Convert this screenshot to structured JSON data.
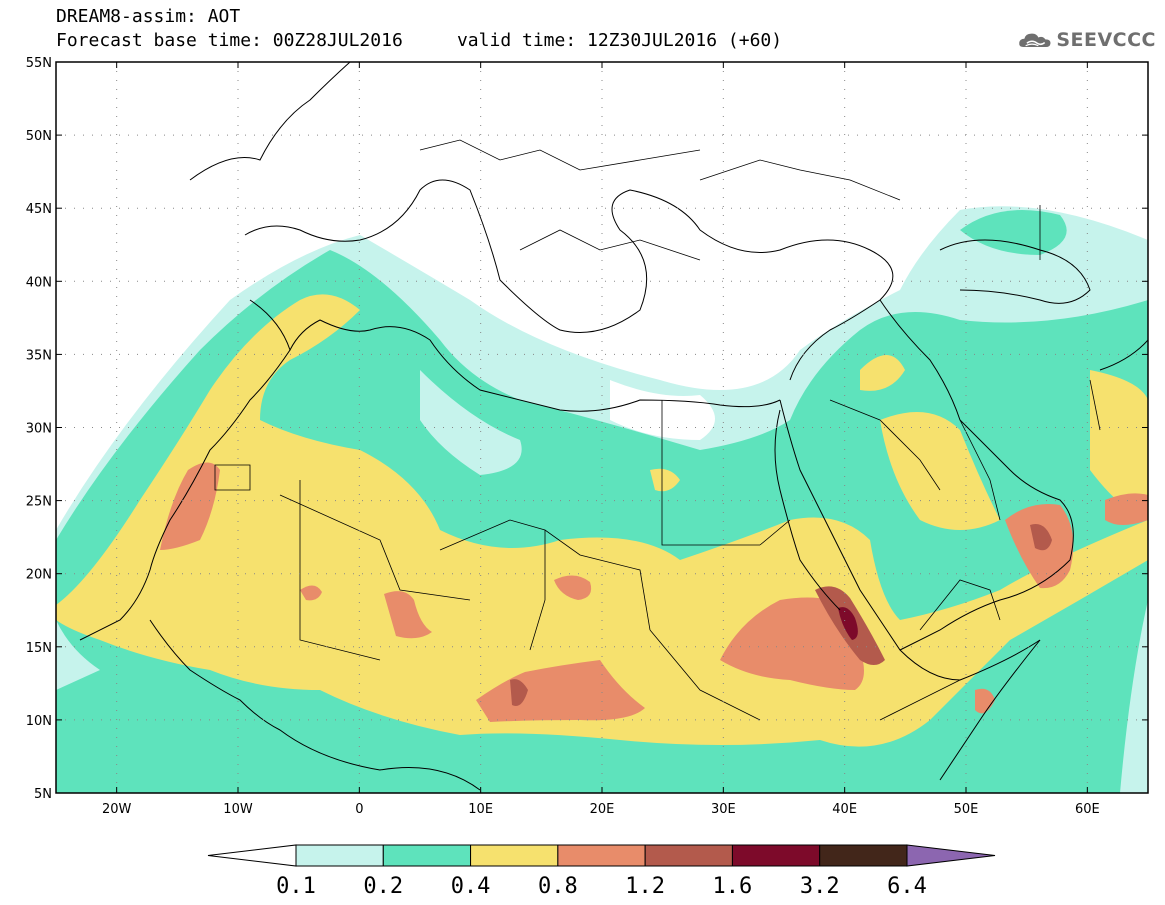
{
  "header": {
    "title_line1": "DREAM8-assim: AOT",
    "title_line2": "Forecast base time: 00Z28JUL2016     valid time: 12Z30JUL2016 (+60)"
  },
  "logo": {
    "text": "SEEVCCC",
    "icon": "cloud-logo-icon"
  },
  "map": {
    "lon_range": [
      -25,
      65
    ],
    "lat_range": [
      5,
      55
    ],
    "lat_ticks": [
      {
        "value": 55,
        "label": "55N"
      },
      {
        "value": 50,
        "label": "50N"
      },
      {
        "value": 45,
        "label": "45N"
      },
      {
        "value": 40,
        "label": "40N"
      },
      {
        "value": 35,
        "label": "35N"
      },
      {
        "value": 30,
        "label": "30N"
      },
      {
        "value": 25,
        "label": "25N"
      },
      {
        "value": 20,
        "label": "20N"
      },
      {
        "value": 15,
        "label": "15N"
      },
      {
        "value": 10,
        "label": "10N"
      },
      {
        "value": 5,
        "label": "5N"
      }
    ],
    "lon_ticks": [
      {
        "value": -20,
        "label": "20W"
      },
      {
        "value": -10,
        "label": "10W"
      },
      {
        "value": 0,
        "label": "0"
      },
      {
        "value": 10,
        "label": "10E"
      },
      {
        "value": 20,
        "label": "20E"
      },
      {
        "value": 30,
        "label": "30E"
      },
      {
        "value": 40,
        "label": "40E"
      },
      {
        "value": 50,
        "label": "50E"
      },
      {
        "value": 60,
        "label": "60E"
      }
    ],
    "grid": "dotted",
    "field_colors": {
      "c01": "#c6f3ec",
      "c02": "#5ee3bc",
      "c04": "#f6e16e",
      "c08": "#e88c6a",
      "c12": "#b35a4c",
      "c16": "#7d0a2a",
      "c32": "#42261a"
    }
  },
  "colorbar": {
    "segments": [
      {
        "color": "#ffffff"
      },
      {
        "color": "#c6f3ec"
      },
      {
        "color": "#5ee3bc"
      },
      {
        "color": "#f6e16e"
      },
      {
        "color": "#e88c6a"
      },
      {
        "color": "#b35a4c"
      },
      {
        "color": "#7d0a2a"
      },
      {
        "color": "#42261a"
      },
      {
        "color": "#8c66b0"
      }
    ],
    "labels": [
      "0.1",
      "0.2",
      "0.4",
      "0.8",
      "1.2",
      "1.6",
      "3.2",
      "6.4"
    ]
  }
}
